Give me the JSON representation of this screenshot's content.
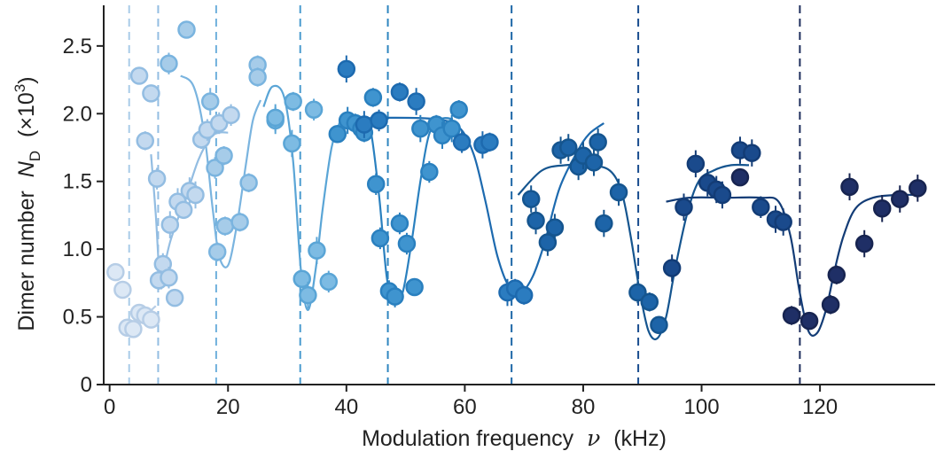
{
  "chart_data": {
    "type": "scatter",
    "xlabel": "Modulation frequency",
    "xlabel_symbol": "ν",
    "xlabel_unit": "(kHz)",
    "ylabel": "Dimer number",
    "ylabel_symbol": "N",
    "ylabel_subscript": "D",
    "ylabel_unit_prefix": "(×10",
    "ylabel_unit_exp": "3",
    "ylabel_unit_suffix": ")",
    "xlim": [
      -1,
      139
    ],
    "ylim": [
      0,
      2.8
    ],
    "xticks": [
      0,
      20,
      40,
      60,
      80,
      100,
      120
    ],
    "yticks": [
      0,
      0.5,
      1.0,
      1.5,
      2.0,
      2.5
    ],
    "xtick_labels": [
      "0",
      "20",
      "40",
      "60",
      "80",
      "100",
      "120"
    ],
    "ytick_labels": [
      "0",
      "0.5",
      "1.0",
      "1.5",
      "2.0",
      "2.5"
    ],
    "grid": false,
    "vertical_lines": [
      {
        "x": 3.3,
        "color": "#a9cbe8"
      },
      {
        "x": 8.2,
        "color": "#93bde2"
      },
      {
        "x": 18.0,
        "color": "#6fb0dc"
      },
      {
        "x": 32.2,
        "color": "#4a9ccf"
      },
      {
        "x": 47.0,
        "color": "#2f86c0"
      },
      {
        "x": 67.9,
        "color": "#1d67a7"
      },
      {
        "x": 89.3,
        "color": "#1a4d8f"
      },
      {
        "x": 116.6,
        "color": "#1f2f5e"
      }
    ],
    "series": [
      {
        "fill": "#dce8f5",
        "stroke": "#b6cde6",
        "points": [
          [
            1.0,
            0.83,
            0
          ],
          [
            2.2,
            0.7,
            0
          ],
          [
            3.0,
            0.42,
            0
          ],
          [
            4.0,
            0.41,
            0
          ],
          [
            5.0,
            0.53,
            0
          ],
          [
            6.0,
            0.51,
            0
          ],
          [
            7.0,
            0.48,
            0
          ]
        ],
        "fit": [
          [
            2.8,
            0.42
          ],
          [
            4.2,
            0.42
          ],
          [
            5.5,
            0.47
          ],
          [
            6.5,
            0.52
          ],
          [
            7.3,
            0.56
          ],
          [
            7.8,
            0.58
          ]
        ]
      },
      {
        "fill": "#c3d9ef",
        "stroke": "#93bde2",
        "points": [
          [
            5.0,
            2.28,
            0
          ],
          [
            6.0,
            1.8,
            0.07
          ],
          [
            7.0,
            2.15,
            0
          ],
          [
            8.0,
            1.52,
            0.08
          ],
          [
            8.3,
            0.77,
            0.07
          ],
          [
            9.0,
            0.89,
            0.08
          ],
          [
            10.0,
            0.79,
            0.08
          ],
          [
            10.2,
            1.18,
            0.1
          ],
          [
            11.0,
            0.64,
            0
          ],
          [
            11.5,
            1.35,
            0.1
          ],
          [
            12.5,
            1.29,
            0.06
          ],
          [
            13.5,
            1.43,
            0.1
          ],
          [
            14.5,
            1.4,
            0.1
          ],
          [
            15.5,
            1.81,
            0.07
          ],
          [
            16.5,
            1.88,
            0.08
          ],
          [
            18.5,
            1.93,
            0.08
          ],
          [
            20.5,
            1.99,
            0.08
          ]
        ],
        "fit": [
          [
            7.0,
            1.7
          ],
          [
            7.8,
            1.25
          ],
          [
            8.6,
            0.72
          ],
          [
            9.4,
            0.9
          ],
          [
            10.2,
            1.05
          ],
          [
            11.5,
            1.22
          ],
          [
            13.0,
            1.4
          ],
          [
            15.0,
            1.66
          ],
          [
            17.0,
            1.82
          ],
          [
            18.5,
            1.86
          ],
          [
            20.0,
            1.86
          ]
        ]
      },
      {
        "fill": "#a6cce9",
        "stroke": "#7ab4df",
        "points": [
          [
            10.0,
            2.37,
            0.08
          ],
          [
            13.0,
            2.62,
            0
          ],
          [
            17.0,
            2.09,
            0.1
          ],
          [
            17.8,
            1.6,
            0.08
          ],
          [
            18.2,
            0.98,
            0.07
          ],
          [
            19.5,
            1.17,
            0.07
          ],
          [
            19.3,
            1.69,
            0.07
          ],
          [
            22.0,
            1.2,
            0.07
          ],
          [
            23.5,
            1.49,
            0.07
          ],
          [
            25.0,
            2.36,
            0.07
          ],
          [
            25.0,
            2.27,
            0.07
          ]
        ],
        "fit": [
          [
            12.0,
            2.28
          ],
          [
            14.2,
            2.2
          ],
          [
            16.0,
            1.85
          ],
          [
            17.4,
            1.3
          ],
          [
            18.5,
            0.95
          ],
          [
            20.0,
            0.88
          ],
          [
            21.5,
            1.18
          ],
          [
            23.0,
            1.62
          ],
          [
            24.2,
            1.95
          ],
          [
            25.5,
            2.1
          ]
        ]
      },
      {
        "fill": "#7dbbe3",
        "stroke": "#5aa5d6",
        "points": [
          [
            28.0,
            1.95,
            0.1
          ],
          [
            28.0,
            1.97,
            0.1
          ],
          [
            31.0,
            2.09,
            0.07
          ],
          [
            30.8,
            1.78,
            0.1
          ],
          [
            32.5,
            0.78,
            0
          ],
          [
            33.5,
            0.66,
            0.1
          ],
          [
            34.5,
            2.03,
            0.08
          ],
          [
            35.0,
            0.99,
            0.1
          ],
          [
            37.0,
            0.76,
            0.08
          ]
        ],
        "fit": [
          [
            26.0,
            2.05
          ],
          [
            27.5,
            2.2
          ],
          [
            29.5,
            2.12
          ],
          [
            31.0,
            1.65
          ],
          [
            32.3,
            0.85
          ],
          [
            33.5,
            0.55
          ],
          [
            34.8,
            0.85
          ],
          [
            36.0,
            1.3
          ],
          [
            37.5,
            1.75
          ],
          [
            39.0,
            1.95
          ]
        ]
      },
      {
        "fill": "#3f94cf",
        "stroke": "#2a80bf",
        "points": [
          [
            38.5,
            1.85,
            0
          ],
          [
            40.2,
            1.95,
            0.1
          ],
          [
            41.5,
            1.93,
            0.07
          ],
          [
            42.5,
            1.89,
            0.07
          ],
          [
            43.0,
            1.86,
            0.07
          ],
          [
            44.5,
            2.12,
            0.07
          ],
          [
            45.0,
            1.48,
            0.08
          ],
          [
            45.7,
            1.08,
            0.08
          ],
          [
            47.2,
            0.69,
            0.08
          ],
          [
            48.2,
            0.65,
            0.08
          ],
          [
            49.0,
            1.19,
            0.08
          ],
          [
            50.2,
            1.04,
            0.08
          ],
          [
            51.5,
            0.72,
            0.06
          ],
          [
            52.5,
            1.89,
            0.1
          ],
          [
            54.0,
            1.57,
            0.08
          ],
          [
            55.2,
            1.92,
            0.07
          ],
          [
            56.2,
            1.84,
            0.1
          ],
          [
            57.8,
            1.89,
            0.1
          ],
          [
            59.0,
            2.03,
            0.07
          ]
        ],
        "fit": [
          [
            39.0,
            1.96
          ],
          [
            42.5,
            1.96
          ],
          [
            44.0,
            1.9
          ],
          [
            45.5,
            1.4
          ],
          [
            46.8,
            0.8
          ],
          [
            48.0,
            0.6
          ],
          [
            49.5,
            0.68
          ],
          [
            51.0,
            1.05
          ],
          [
            52.5,
            1.5
          ],
          [
            54.0,
            1.85
          ],
          [
            56.0,
            1.96
          ],
          [
            58.0,
            1.96
          ]
        ]
      },
      {
        "fill": "#2b7cc0",
        "stroke": "#1d6aaf",
        "points": [
          [
            40.0,
            2.33,
            0.1
          ],
          [
            43.0,
            1.92,
            0.1
          ],
          [
            45.5,
            1.95,
            0.08
          ],
          [
            49.0,
            2.16,
            0.07
          ],
          [
            51.8,
            2.09,
            0.1
          ],
          [
            59.5,
            1.79,
            0.08
          ],
          [
            63.0,
            1.77,
            0.1
          ],
          [
            64.2,
            1.79,
            0.07
          ],
          [
            67.2,
            0.68,
            0.1
          ],
          [
            68.5,
            0.71,
            0.07
          ],
          [
            70.0,
            0.66,
            0.07
          ]
        ],
        "fit": [
          [
            41.0,
            1.96
          ],
          [
            47.0,
            1.97
          ],
          [
            55.0,
            1.96
          ],
          [
            59.0,
            1.9
          ],
          [
            61.5,
            1.7
          ],
          [
            63.5,
            1.35
          ],
          [
            65.5,
            0.95
          ],
          [
            67.5,
            0.72
          ],
          [
            69.5,
            0.68
          ],
          [
            71.5,
            0.8
          ],
          [
            73.5,
            1.05
          ],
          [
            76.0,
            1.45
          ],
          [
            79.0,
            1.72
          ],
          [
            81.0,
            1.85
          ],
          [
            83.5,
            1.93
          ]
        ]
      },
      {
        "fill": "#1d64a8",
        "stroke": "#15558f",
        "points": [
          [
            71.2,
            1.37,
            0.1
          ],
          [
            72.0,
            1.21,
            0.1
          ],
          [
            74.0,
            1.05,
            0.1
          ],
          [
            75.2,
            1.16,
            0.1
          ],
          [
            76.2,
            1.73,
            0.1
          ],
          [
            77.5,
            1.75,
            0.1
          ],
          [
            79.2,
            1.61,
            0.1
          ],
          [
            80.0,
            1.69,
            0.1
          ],
          [
            81.8,
            1.64,
            0.1
          ],
          [
            82.5,
            1.79,
            0.1
          ],
          [
            83.5,
            1.19,
            0.1
          ],
          [
            86.0,
            1.42,
            0.1
          ],
          [
            89.2,
            0.68,
            0.08
          ],
          [
            91.2,
            0.61,
            0.07
          ],
          [
            92.8,
            0.44,
            0
          ]
        ],
        "fit": [
          [
            69.0,
            1.4
          ],
          [
            73.0,
            1.58
          ],
          [
            77.0,
            1.62
          ],
          [
            81.0,
            1.62
          ],
          [
            84.5,
            1.58
          ],
          [
            86.5,
            1.42
          ],
          [
            88.0,
            1.1
          ],
          [
            89.5,
            0.7
          ],
          [
            91.0,
            0.4
          ],
          [
            92.5,
            0.34
          ],
          [
            94.0,
            0.5
          ],
          [
            95.5,
            0.85
          ],
          [
            97.5,
            1.25
          ],
          [
            99.5,
            1.5
          ],
          [
            102.0,
            1.58
          ],
          [
            105.0,
            1.62
          ],
          [
            108.0,
            1.62
          ]
        ]
      },
      {
        "fill": "#1a4a8c",
        "stroke": "#133c76",
        "points": [
          [
            95.0,
            0.86,
            0.1
          ],
          [
            97.0,
            1.31,
            0.1
          ],
          [
            99.0,
            1.63,
            0.1
          ],
          [
            101.0,
            1.49,
            0.1
          ],
          [
            102.5,
            1.44,
            0.1
          ],
          [
            103.5,
            1.4,
            0.1
          ],
          [
            106.5,
            1.73,
            0.1
          ],
          [
            108.5,
            1.71,
            0.1
          ],
          [
            110.0,
            1.31,
            0.08
          ],
          [
            112.5,
            1.22,
            0.1
          ],
          [
            113.8,
            1.2,
            0.1
          ]
        ],
        "fit": [
          [
            94.0,
            1.35
          ],
          [
            98.0,
            1.38
          ],
          [
            104.0,
            1.38
          ],
          [
            110.0,
            1.38
          ],
          [
            113.0,
            1.35
          ],
          [
            115.0,
            1.1
          ],
          [
            116.5,
            0.7
          ],
          [
            118.0,
            0.4
          ],
          [
            119.5,
            0.38
          ],
          [
            121.0,
            0.55
          ],
          [
            122.5,
            0.85
          ],
          [
            124.0,
            1.1
          ],
          [
            126.0,
            1.3
          ],
          [
            129.0,
            1.38
          ],
          [
            133.0,
            1.4
          ],
          [
            137.0,
            1.4
          ]
        ]
      },
      {
        "fill": "#1f2f66",
        "stroke": "#172450",
        "points": [
          [
            106.5,
            1.53,
            0
          ],
          [
            115.2,
            0.51,
            0.07
          ],
          [
            118.2,
            0.47,
            0.06
          ],
          [
            121.8,
            0.59,
            0.07
          ],
          [
            122.8,
            0.81,
            0.07
          ],
          [
            125.0,
            1.46,
            0.1
          ],
          [
            127.5,
            1.04,
            0.1
          ],
          [
            130.5,
            1.3,
            0.1
          ],
          [
            133.5,
            1.37,
            0.1
          ],
          [
            136.5,
            1.45,
            0.1
          ]
        ]
      }
    ]
  }
}
